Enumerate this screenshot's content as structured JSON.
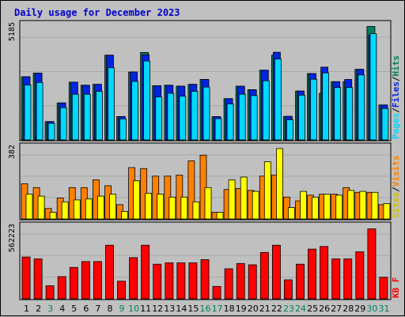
{
  "title": "Daily usage for December 2023",
  "colors": {
    "hits": "#00805c",
    "files": "#0024e0",
    "pages": "#00d8ff",
    "visits": "#ff8000",
    "sites": "#ffff00",
    "kbytes": "#ff0000",
    "weekend_label": "#00805c",
    "weekday_label": "#000000",
    "title": "#0000cc",
    "panel_bg": "#c0c0c0"
  },
  "chart_data": {
    "type": "bar",
    "categories": [
      "1",
      "2",
      "3",
      "4",
      "5",
      "6",
      "7",
      "8",
      "9",
      "10",
      "11",
      "12",
      "13",
      "14",
      "15",
      "16",
      "17",
      "18",
      "19",
      "20",
      "21",
      "22",
      "23",
      "24",
      "25",
      "26",
      "27",
      "28",
      "29",
      "30",
      "31"
    ],
    "weekend_days": [
      "3",
      "9",
      "10",
      "16",
      "17",
      "23",
      "24",
      "30",
      "31"
    ],
    "panels": [
      {
        "name": "usage",
        "ymax_label": "5185",
        "ylim": [
          0,
          5185
        ],
        "legend": [
          "Pages",
          "Files",
          "Hits"
        ],
        "series": [
          {
            "name": "Hits",
            "color": "#00805c",
            "values": [
              2820,
              2980,
              820,
              1650,
              2580,
              2440,
              2480,
              3780,
              1040,
              3030,
              3900,
              2420,
              2440,
              2400,
              2480,
              2700,
              1040,
              1840,
              2400,
              2240,
              3110,
              3780,
              1050,
              2180,
              2960,
              2080,
              2600,
              2600,
              3150,
              5060,
              1560
            ]
          },
          {
            "name": "Files",
            "color": "#0024e0",
            "values": [
              2820,
              2980,
              820,
              1650,
              2580,
              2440,
              2480,
              3780,
              1040,
              3030,
              3800,
              2420,
              2440,
              2400,
              2480,
              2700,
              1040,
              1840,
              2400,
              2240,
              3110,
              3910,
              1050,
              2180,
              2960,
              3250,
              2600,
              2700,
              3150,
              4680,
              1560
            ]
          },
          {
            "name": "Pages",
            "color": "#00d8ff",
            "values": [
              2450,
              2560,
              740,
              1440,
              2040,
              2040,
              2170,
              3220,
              940,
              2610,
              3520,
              1920,
              2080,
              1950,
              2170,
              2360,
              950,
              1610,
              2040,
              1980,
              2640,
              3610,
              900,
              2000,
              2710,
              2990,
              2340,
              2340,
              2900,
              4740,
              1400
            ]
          }
        ]
      },
      {
        "name": "visits",
        "ymax_label": "382",
        "ylim": [
          0,
          382
        ],
        "legend": [
          "Sites",
          "Visits"
        ],
        "series": [
          {
            "name": "Visits",
            "color": "#ff8000",
            "values": [
              185,
              165,
              55,
              110,
              165,
              165,
              205,
              175,
              75,
              270,
              265,
              225,
              225,
              230,
              305,
              335,
              35,
              155,
              160,
              150,
              225,
              230,
              115,
              95,
              125,
              130,
              130,
              165,
              140,
              140,
              75
            ]
          },
          {
            "name": "Sites",
            "color": "#ffff00",
            "values": [
              130,
              120,
              35,
              90,
              100,
              105,
              120,
              130,
              40,
              200,
              135,
              130,
              115,
              115,
              90,
              165,
              35,
              205,
              220,
              145,
              300,
              370,
              60,
              145,
              115,
              130,
              125,
              150,
              145,
              140,
              80
            ]
          }
        ]
      },
      {
        "name": "kbytes",
        "ymax_label": "562223",
        "ylim": [
          0,
          562223
        ],
        "legend": [
          "KB",
          "F"
        ],
        "series": [
          {
            "name": "KB F",
            "color": "#ff0000",
            "values": [
              320000,
              305000,
              100000,
              170000,
              240000,
              285000,
              285000,
              410000,
              135000,
              315000,
              410000,
              265000,
              275000,
              275000,
              275000,
              300000,
              95000,
              230000,
              270000,
              260000,
              355000,
              410000,
              145000,
              265000,
              380000,
              400000,
              305000,
              305000,
              360000,
              535000,
              165000
            ]
          }
        ]
      }
    ]
  }
}
